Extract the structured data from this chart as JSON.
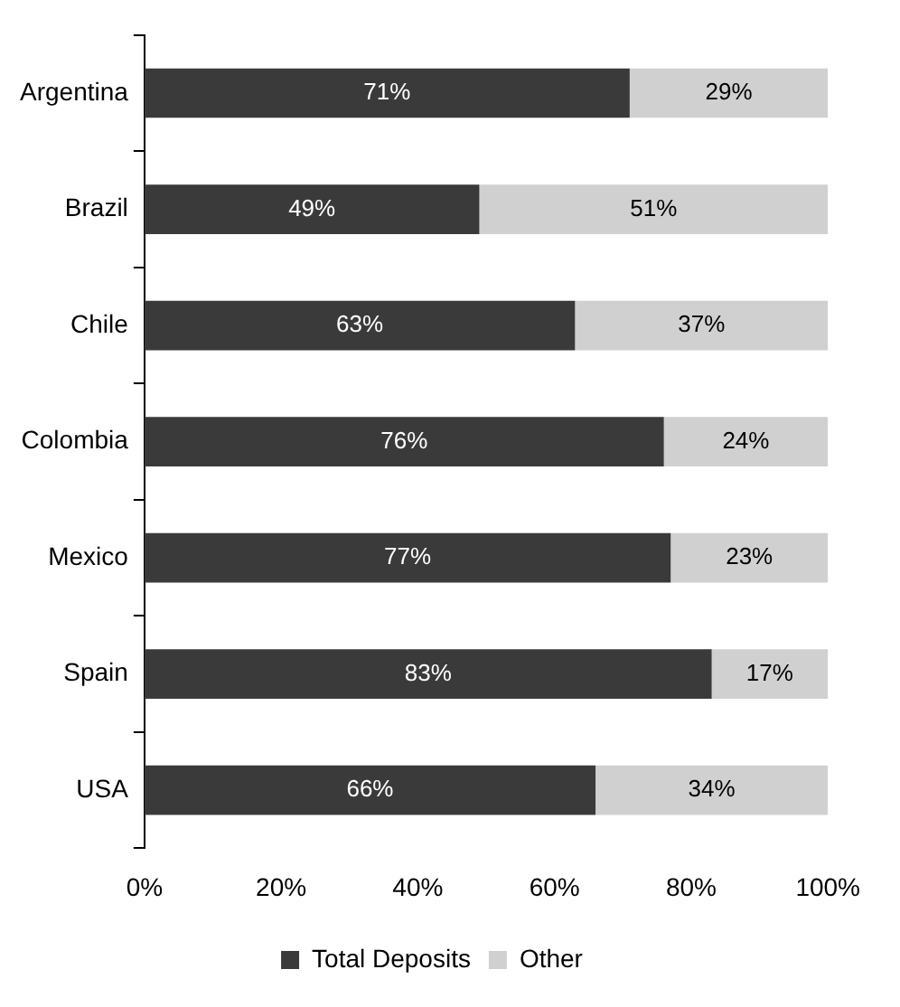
{
  "chart_data": {
    "type": "bar",
    "orientation": "horizontal",
    "stacked": true,
    "categories": [
      "Argentina",
      "Brazil",
      "Chile",
      "Colombia",
      "Mexico",
      "Spain",
      "USA"
    ],
    "series": [
      {
        "name": "Total Deposits",
        "color": "#3a3a3a",
        "values": [
          71,
          49,
          63,
          76,
          77,
          83,
          66
        ],
        "value_labels": [
          "71%",
          "49%",
          "63%",
          "76%",
          "77%",
          "83%",
          "66%"
        ]
      },
      {
        "name": "Other",
        "color": "#d0d0d0",
        "values": [
          29,
          51,
          37,
          24,
          23,
          17,
          34
        ],
        "value_labels": [
          "29%",
          "51%",
          "37%",
          "24%",
          "23%",
          "17%",
          "34%"
        ]
      }
    ],
    "xlim": [
      0,
      100
    ],
    "xticks": [
      {
        "value": 0,
        "label": "0%"
      },
      {
        "value": 20,
        "label": "20%"
      },
      {
        "value": 40,
        "label": "40%"
      },
      {
        "value": 60,
        "label": "60%"
      },
      {
        "value": 80,
        "label": "80%"
      },
      {
        "value": 100,
        "label": "100%"
      }
    ],
    "legend": "bottom",
    "grid": false
  }
}
